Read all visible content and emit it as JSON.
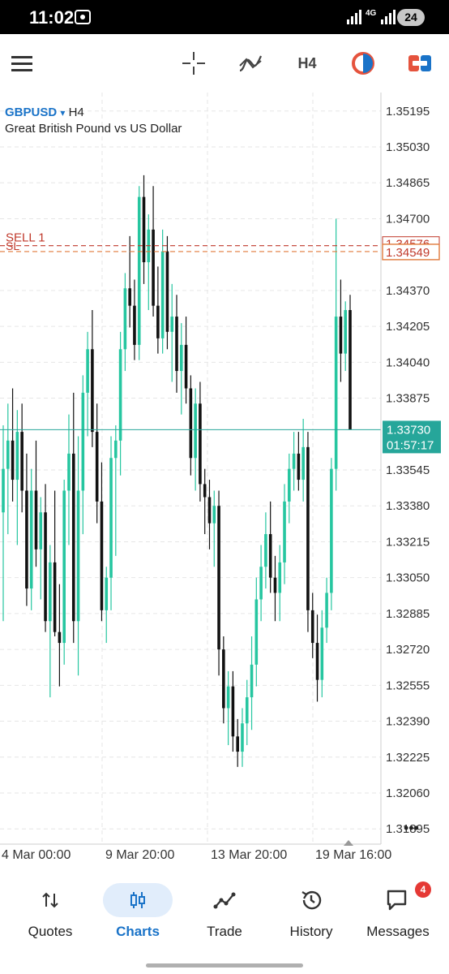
{
  "status_bar": {
    "time": "11:02",
    "network": "4G",
    "battery": "24"
  },
  "toolbar": {
    "timeframe": "H4",
    "icons": [
      "menu-icon",
      "crosshair-icon",
      "indicators-icon",
      "timeframe-button",
      "color-circle-icon",
      "trade-toggle-icon"
    ]
  },
  "chart": {
    "symbol": "GBPUSD",
    "dropdown_glyph": "▾",
    "timeframe": "H4",
    "description": "Great British Pound vs US Dollar",
    "sell_label": "SELL 1",
    "sl_label": "SL",
    "sell_price": "1.34576",
    "sl_price": "1.34549",
    "current_price": "1.33730",
    "countdown": "01:57:17",
    "more_glyph": "•••",
    "colors": {
      "bull": "#26c6a0",
      "bear": "#111111",
      "order_line": "#c0392b",
      "bid_line": "#26a69a",
      "grid": "#e6e6e6"
    }
  },
  "chart_data": {
    "type": "candlestick",
    "price_axis_labels": [
      "1.35195",
      "1.35030",
      "1.34865",
      "1.34700",
      "1.34370",
      "1.34205",
      "1.34040",
      "1.33875",
      "1.33545",
      "1.33380",
      "1.33215",
      "1.33050",
      "1.32885",
      "1.32720",
      "1.32555",
      "1.32390",
      "1.32225",
      "1.32060",
      "1.31895"
    ],
    "time_axis_labels": [
      "4 Mar 00:00",
      "9 Mar 20:00",
      "13 Mar 20:00",
      "19 Mar 16:00"
    ],
    "ylim": [
      1.3181,
      1.3528
    ],
    "ohlc": [
      [
        1.3335,
        1.3375,
        1.3285,
        1.3355
      ],
      [
        1.3355,
        1.3385,
        1.3325,
        1.3368
      ],
      [
        1.3368,
        1.3392,
        1.334,
        1.335
      ],
      [
        1.335,
        1.3382,
        1.332,
        1.3372
      ],
      [
        1.3372,
        1.3385,
        1.3335,
        1.3345
      ],
      [
        1.3345,
        1.3362,
        1.3292,
        1.33
      ],
      [
        1.33,
        1.3355,
        1.329,
        1.3345
      ],
      [
        1.3345,
        1.3368,
        1.331,
        1.3318
      ],
      [
        1.3318,
        1.3342,
        1.3295,
        1.3335
      ],
      [
        1.3335,
        1.3348,
        1.328,
        1.3285
      ],
      [
        1.3285,
        1.332,
        1.325,
        1.3312
      ],
      [
        1.3312,
        1.3345,
        1.3278,
        1.328
      ],
      [
        1.328,
        1.3302,
        1.3255,
        1.3275
      ],
      [
        1.3275,
        1.335,
        1.3265,
        1.3345
      ],
      [
        1.3345,
        1.338,
        1.332,
        1.3362
      ],
      [
        1.3362,
        1.339,
        1.3275,
        1.3285
      ],
      [
        1.3285,
        1.337,
        1.326,
        1.3345
      ],
      [
        1.3345,
        1.3398,
        1.3325,
        1.339
      ],
      [
        1.339,
        1.3418,
        1.337,
        1.341
      ],
      [
        1.341,
        1.3428,
        1.3365,
        1.3372
      ],
      [
        1.3372,
        1.3385,
        1.333,
        1.334
      ],
      [
        1.334,
        1.3358,
        1.3285,
        1.329
      ],
      [
        1.329,
        1.331,
        1.3275,
        1.3305
      ],
      [
        1.3305,
        1.337,
        1.329,
        1.336
      ],
      [
        1.336,
        1.3375,
        1.3315,
        1.3368
      ],
      [
        1.3368,
        1.3418,
        1.3352,
        1.341
      ],
      [
        1.341,
        1.3445,
        1.34,
        1.3438
      ],
      [
        1.3438,
        1.3462,
        1.342,
        1.343
      ],
      [
        1.343,
        1.3442,
        1.3405,
        1.3412
      ],
      [
        1.3412,
        1.3485,
        1.3405,
        1.348
      ],
      [
        1.348,
        1.349,
        1.344,
        1.345
      ],
      [
        1.345,
        1.3472,
        1.3428,
        1.3465
      ],
      [
        1.3465,
        1.3485,
        1.3425,
        1.343
      ],
      [
        1.343,
        1.3448,
        1.3408,
        1.3415
      ],
      [
        1.3415,
        1.3465,
        1.3408,
        1.3455
      ],
      [
        1.3455,
        1.3462,
        1.341,
        1.3418
      ],
      [
        1.3418,
        1.344,
        1.3395,
        1.3425
      ],
      [
        1.3425,
        1.3435,
        1.339,
        1.34
      ],
      [
        1.34,
        1.3422,
        1.338,
        1.3412
      ],
      [
        1.3412,
        1.3425,
        1.3385,
        1.3392
      ],
      [
        1.3392,
        1.3398,
        1.3352,
        1.336
      ],
      [
        1.336,
        1.3392,
        1.3345,
        1.3385
      ],
      [
        1.3385,
        1.3395,
        1.334,
        1.3348
      ],
      [
        1.3348,
        1.3355,
        1.3325,
        1.3342
      ],
      [
        1.3342,
        1.335,
        1.3318,
        1.333
      ],
      [
        1.333,
        1.3345,
        1.331,
        1.3338
      ],
      [
        1.3338,
        1.3345,
        1.326,
        1.3272
      ],
      [
        1.3272,
        1.3278,
        1.3238,
        1.3245
      ],
      [
        1.3245,
        1.3262,
        1.3228,
        1.3255
      ],
      [
        1.3255,
        1.3262,
        1.3225,
        1.3232
      ],
      [
        1.3232,
        1.324,
        1.3218,
        1.3225
      ],
      [
        1.3225,
        1.3245,
        1.3218,
        1.3238
      ],
      [
        1.3238,
        1.3258,
        1.3228,
        1.325
      ],
      [
        1.325,
        1.3278,
        1.3235,
        1.3265
      ],
      [
        1.3265,
        1.3305,
        1.3255,
        1.3295
      ],
      [
        1.3295,
        1.332,
        1.3285,
        1.331
      ],
      [
        1.331,
        1.3335,
        1.33,
        1.3325
      ],
      [
        1.3325,
        1.334,
        1.3298,
        1.3305
      ],
      [
        1.3305,
        1.3315,
        1.3285,
        1.3298
      ],
      [
        1.3298,
        1.332,
        1.3285,
        1.3312
      ],
      [
        1.3312,
        1.3348,
        1.3302,
        1.334
      ],
      [
        1.334,
        1.3362,
        1.333,
        1.3355
      ],
      [
        1.3355,
        1.3372,
        1.3345,
        1.3362
      ],
      [
        1.3362,
        1.3372,
        1.3345,
        1.335
      ],
      [
        1.335,
        1.3378,
        1.334,
        1.3365
      ],
      [
        1.3365,
        1.3372,
        1.328,
        1.329
      ],
      [
        1.329,
        1.3298,
        1.3268,
        1.3275
      ],
      [
        1.3275,
        1.3288,
        1.3248,
        1.3258
      ],
      [
        1.3258,
        1.329,
        1.325,
        1.3282
      ],
      [
        1.3282,
        1.3305,
        1.3275,
        1.3298
      ],
      [
        1.3298,
        1.336,
        1.329,
        1.3355
      ],
      [
        1.3355,
        1.347,
        1.3345,
        1.3425
      ],
      [
        1.3425,
        1.3442,
        1.3395,
        1.3408
      ],
      [
        1.3408,
        1.3432,
        1.34,
        1.3428
      ],
      [
        1.3428,
        1.3435,
        1.3373,
        1.3373
      ]
    ]
  },
  "nav": {
    "items": [
      {
        "label": "Quotes"
      },
      {
        "label": "Charts"
      },
      {
        "label": "Trade"
      },
      {
        "label": "History"
      },
      {
        "label": "Messages",
        "badge": "4"
      }
    ]
  }
}
